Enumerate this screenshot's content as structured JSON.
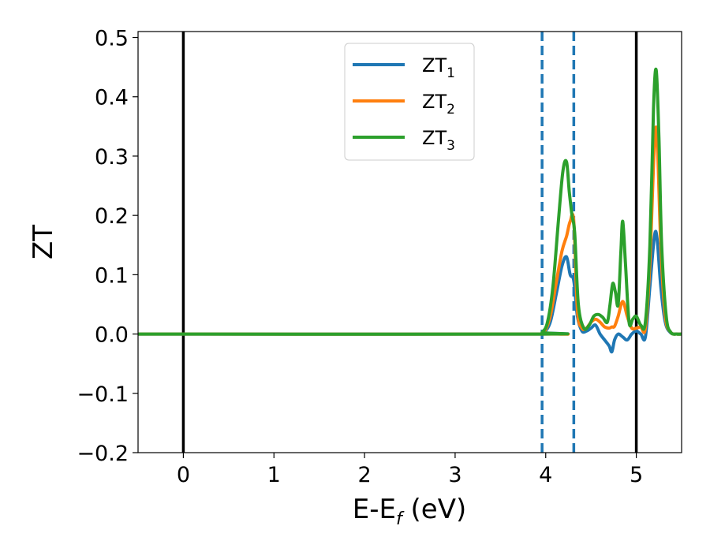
{
  "chart_data": {
    "type": "line",
    "title": "",
    "xlabel": {
      "main": "E-E",
      "sub": "f",
      "unit": " (eV)"
    },
    "ylabel": "ZT",
    "xlim": [
      -0.5,
      5.5
    ],
    "ylim": [
      -0.2,
      0.51
    ],
    "x_ticks": [
      0,
      1,
      2,
      3,
      4,
      5
    ],
    "x_tick_labels": [
      "0",
      "1",
      "2",
      "3",
      "4",
      "5"
    ],
    "y_ticks": [
      -0.2,
      -0.1,
      0.0,
      0.1,
      0.2,
      0.3,
      0.4,
      0.5
    ],
    "y_tick_labels": [
      "−0.2",
      "−0.1",
      "0.0",
      "0.1",
      "0.2",
      "0.3",
      "0.4",
      "0.5"
    ],
    "grid": false,
    "legend_position": "top-center",
    "vertical_lines": [
      {
        "x": 0.0,
        "style": "solid",
        "color": "#000000"
      },
      {
        "x": 3.96,
        "style": "dashed",
        "color": "#1f77b4"
      },
      {
        "x": 4.31,
        "style": "dashed",
        "color": "#1f77b4"
      },
      {
        "x": 5.0,
        "style": "solid",
        "color": "#000000"
      }
    ],
    "series": [
      {
        "name": "ZT",
        "subscript": "1",
        "color": "#1f77b4",
        "x": [
          -0.5,
          3.9,
          3.98,
          4.05,
          4.12,
          4.18,
          4.23,
          4.27,
          4.31,
          4.35,
          4.4,
          4.45,
          4.5,
          4.55,
          4.6,
          4.65,
          4.7,
          4.73,
          4.76,
          4.8,
          4.85,
          4.9,
          4.95,
          5.0,
          5.05,
          5.1,
          5.15,
          5.2,
          5.23,
          5.27,
          5.32,
          5.38,
          5.45,
          5.5
        ],
        "y": [
          0.0,
          0.0,
          0.003,
          0.02,
          0.07,
          0.115,
          0.13,
          0.1,
          0.09,
          0.03,
          0.005,
          0.005,
          0.01,
          0.015,
          0.0,
          -0.01,
          -0.02,
          -0.03,
          -0.01,
          0.0,
          -0.005,
          -0.01,
          0.0,
          0.005,
          0.0,
          -0.005,
          0.08,
          0.165,
          0.16,
          0.08,
          0.02,
          0.002,
          0.0,
          0.0
        ]
      },
      {
        "name": "ZT",
        "subscript": "2",
        "color": "#ff7f0e",
        "x": [
          -0.5,
          3.9,
          3.98,
          4.05,
          4.12,
          4.18,
          4.23,
          4.27,
          4.31,
          4.35,
          4.4,
          4.45,
          4.5,
          4.55,
          4.6,
          4.65,
          4.7,
          4.73,
          4.76,
          4.8,
          4.85,
          4.9,
          4.95,
          5.0,
          5.05,
          5.1,
          5.15,
          5.2,
          5.23,
          5.27,
          5.32,
          5.38,
          5.45,
          5.5
        ],
        "y": [
          0.0,
          0.0,
          0.003,
          0.03,
          0.09,
          0.14,
          0.165,
          0.19,
          0.19,
          0.04,
          0.01,
          0.01,
          0.02,
          0.025,
          0.02,
          0.012,
          0.01,
          0.012,
          0.013,
          0.03,
          0.055,
          0.03,
          0.01,
          0.01,
          0.012,
          0.01,
          0.12,
          0.32,
          0.33,
          0.15,
          0.03,
          0.003,
          0.0,
          0.0
        ]
      },
      {
        "name": "ZT",
        "subscript": "3",
        "color": "#2ca02c",
        "x": [
          -0.5,
          3.9,
          3.96,
          4.02,
          4.08,
          4.14,
          4.19,
          4.23,
          4.26,
          4.29,
          4.32,
          4.36,
          4.42,
          4.48,
          4.53,
          4.58,
          4.63,
          4.68,
          4.71,
          4.74,
          4.77,
          4.8,
          4.83,
          4.85,
          4.88,
          4.92,
          4.96,
          5.0,
          5.05,
          5.1,
          5.15,
          5.19,
          5.22,
          5.25,
          5.28,
          5.33,
          5.38,
          5.45,
          5.5
        ],
        "y": [
          0.0,
          0.0,
          0.003,
          0.02,
          0.08,
          0.19,
          0.275,
          0.29,
          0.24,
          0.2,
          0.17,
          0.05,
          0.01,
          0.015,
          0.03,
          0.033,
          0.028,
          0.02,
          0.05,
          0.085,
          0.07,
          0.05,
          0.14,
          0.19,
          0.12,
          0.02,
          0.025,
          0.03,
          0.015,
          0.02,
          0.15,
          0.38,
          0.445,
          0.33,
          0.15,
          0.03,
          0.003,
          0.0,
          0.0
        ]
      }
    ]
  }
}
